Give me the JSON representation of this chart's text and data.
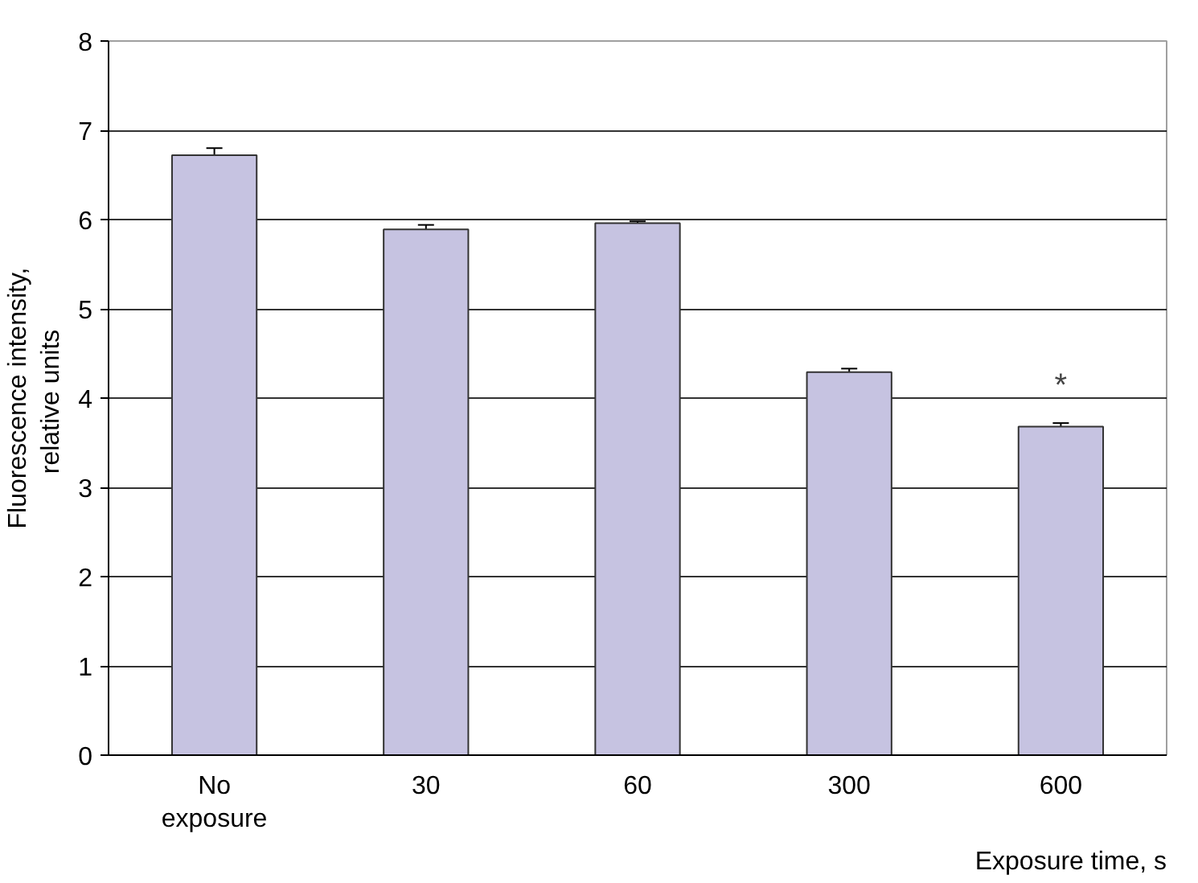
{
  "chart_data": {
    "type": "bar",
    "xlabel": "Exposure time, s",
    "ylabel": "Fluorescence intensity,\nrelative  units",
    "categories": [
      "No\nexposure",
      "30",
      "60",
      "300",
      "600"
    ],
    "values": [
      6.72,
      5.89,
      5.96,
      4.29,
      3.68
    ],
    "errors": [
      0.08,
      0.05,
      0.02,
      0.04,
      0.04
    ],
    "color": "#c6c3e1",
    "ylim": [
      0,
      8
    ],
    "yticks": [
      0,
      1,
      2,
      3,
      4,
      5,
      6,
      7,
      8
    ],
    "grid": "y",
    "annotations": [
      "*"
    ]
  }
}
